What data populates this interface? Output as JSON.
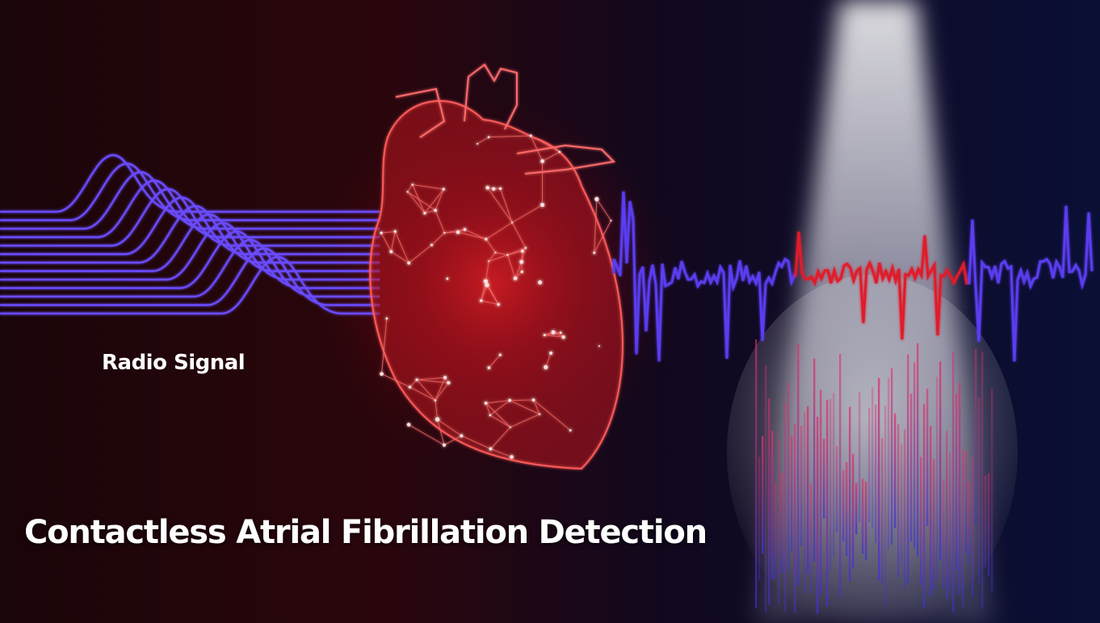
{
  "image": {
    "radio_signal_label": "Radio Signal",
    "title": "Contactless Atrial Fibrillation Detection"
  },
  "palette": {
    "signal_blue": "#6a4cff",
    "heart_red": "#ff3b3b",
    "background_dark": "#14061c",
    "spotlight": "#ffffff"
  }
}
